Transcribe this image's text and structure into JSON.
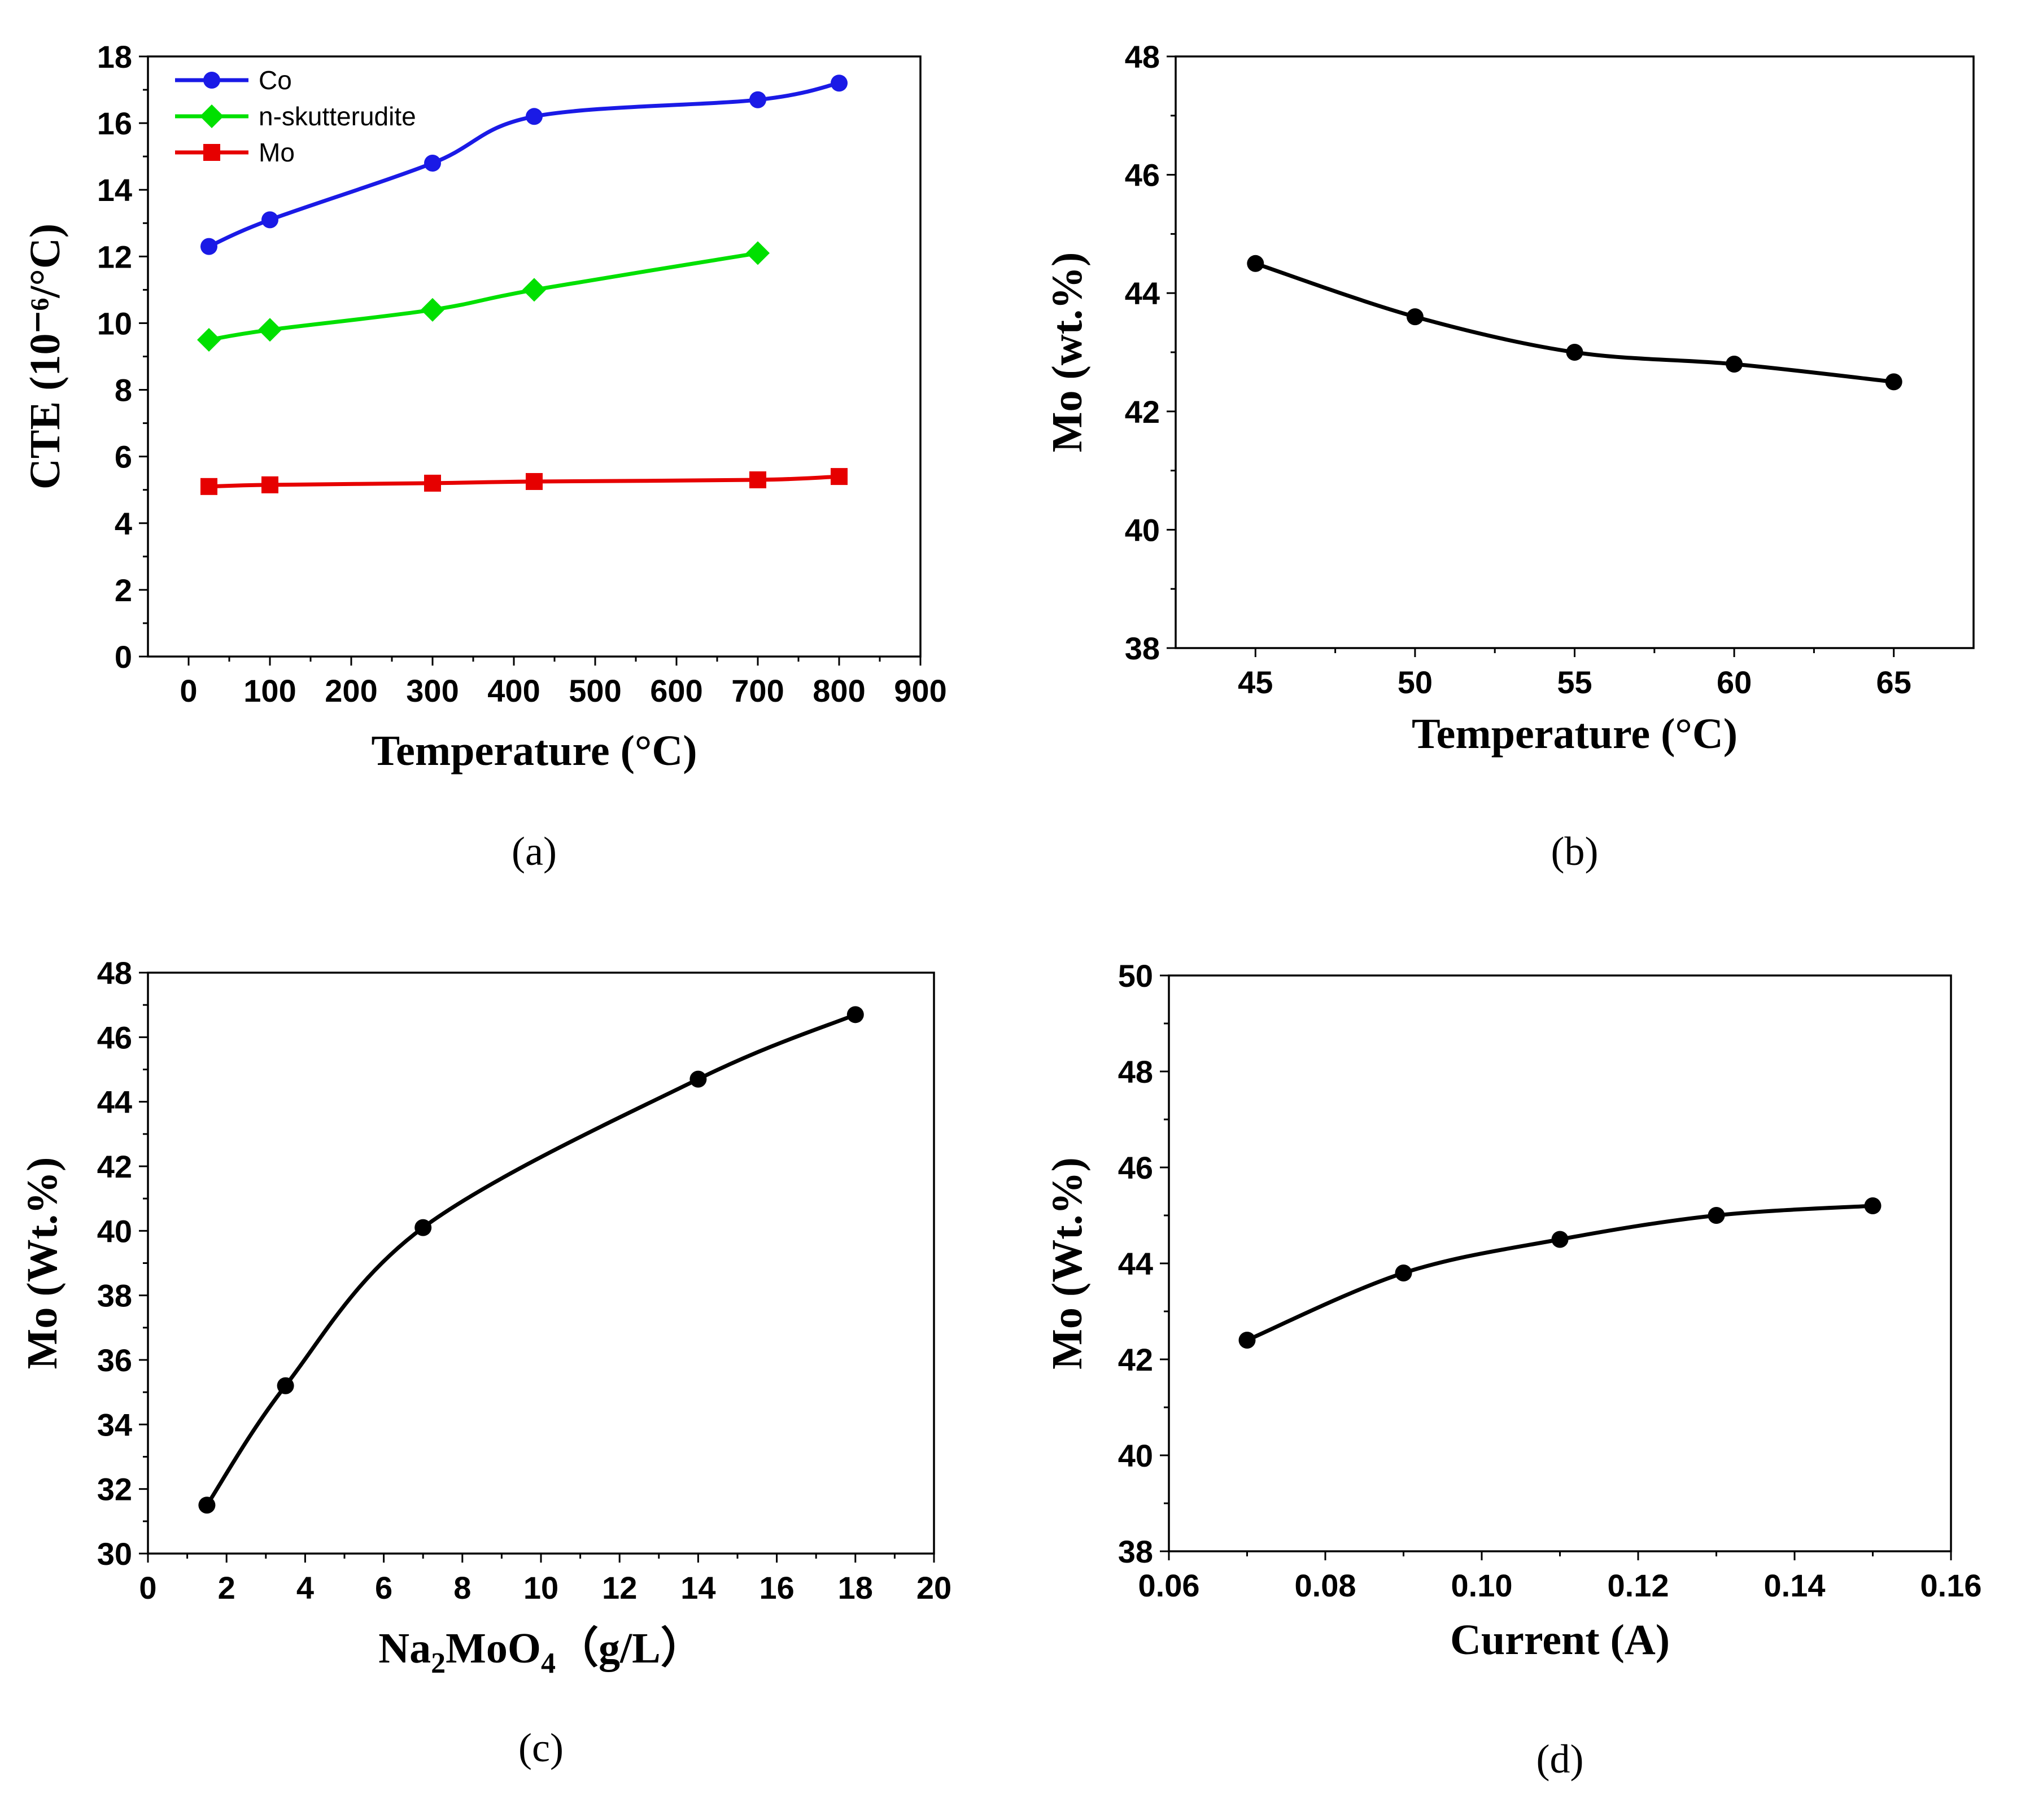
{
  "chart_data": [
    {
      "id": "a",
      "panel_label": "(a)",
      "type": "line",
      "xlabel": "Temperature (°C)",
      "ylabel": "CTE (10⁻⁶/°C)",
      "xlim": [
        -50,
        900
      ],
      "ylim": [
        0,
        18
      ],
      "xticks": [
        0,
        100,
        200,
        300,
        400,
        500,
        600,
        700,
        800,
        900
      ],
      "xtick_labels": [
        "0",
        "100",
        "200",
        "300",
        "400",
        "500",
        "600",
        "700",
        "800",
        "900"
      ],
      "yticks": [
        0,
        2,
        4,
        6,
        8,
        10,
        12,
        14,
        16,
        18
      ],
      "ytick_labels": [
        "0",
        "2",
        "4",
        "6",
        "8",
        "10",
        "12",
        "14",
        "16",
        "18"
      ],
      "legend_position": "top-left",
      "series": [
        {
          "name": "Co",
          "color": "#1a1ae6",
          "marker": "circle",
          "x": [
            25,
            100,
            300,
            425,
            700,
            800
          ],
          "y": [
            12.3,
            13.1,
            14.8,
            16.2,
            16.7,
            17.2
          ]
        },
        {
          "name": "n-skutterudite",
          "color": "#00e000",
          "marker": "diamond",
          "x": [
            25,
            100,
            300,
            425,
            700
          ],
          "y": [
            9.5,
            9.8,
            10.4,
            11.0,
            12.1
          ]
        },
        {
          "name": "Mo",
          "color": "#e60000",
          "marker": "square",
          "x": [
            25,
            100,
            300,
            425,
            700,
            800
          ],
          "y": [
            5.1,
            5.15,
            5.2,
            5.25,
            5.3,
            5.4
          ]
        }
      ]
    },
    {
      "id": "b",
      "panel_label": "(b)",
      "type": "line",
      "xlabel": "Temperature (°C)",
      "ylabel": "Mo (wt.%)",
      "xlim": [
        42.5,
        67.5
      ],
      "ylim": [
        38,
        48
      ],
      "xticks": [
        45,
        50,
        55,
        60,
        65
      ],
      "xtick_labels": [
        "45",
        "50",
        "55",
        "60",
        "65"
      ],
      "yticks": [
        38,
        40,
        42,
        44,
        46,
        48
      ],
      "ytick_labels": [
        "38",
        "40",
        "42",
        "44",
        "46",
        "48"
      ],
      "series": [
        {
          "name": "Mo",
          "color": "#000000",
          "marker": "circle",
          "x": [
            45,
            50,
            55,
            60,
            65
          ],
          "y": [
            44.5,
            43.6,
            43.0,
            42.8,
            42.5
          ]
        }
      ]
    },
    {
      "id": "c",
      "panel_label": "(c)",
      "type": "line",
      "xlabel_parts": [
        "Na",
        "2",
        "MoO",
        "4",
        "（g/L）"
      ],
      "ylabel": "Mo (Wt.%)",
      "xlim": [
        0,
        20
      ],
      "ylim": [
        30,
        48
      ],
      "xticks": [
        0,
        2,
        4,
        6,
        8,
        10,
        12,
        14,
        16,
        18,
        20
      ],
      "xtick_labels": [
        "0",
        "2",
        "4",
        "6",
        "8",
        "10",
        "12",
        "14",
        "16",
        "18",
        "20"
      ],
      "yticks": [
        30,
        32,
        34,
        36,
        38,
        40,
        42,
        44,
        46,
        48
      ],
      "ytick_labels": [
        "30",
        "32",
        "34",
        "36",
        "38",
        "40",
        "42",
        "44",
        "46",
        "48"
      ],
      "series": [
        {
          "name": "Mo",
          "color": "#000000",
          "marker": "circle",
          "x": [
            1.5,
            3.5,
            7,
            14,
            18
          ],
          "y": [
            31.5,
            35.2,
            40.1,
            44.7,
            46.7
          ]
        }
      ]
    },
    {
      "id": "d",
      "panel_label": "(d)",
      "type": "line",
      "xlabel": "Current (A)",
      "ylabel": "Mo (Wt.%)",
      "xlim": [
        0.06,
        0.16
      ],
      "ylim": [
        38,
        50
      ],
      "xticks": [
        0.06,
        0.08,
        0.1,
        0.12,
        0.14,
        0.16
      ],
      "xtick_labels": [
        "0.06",
        "0.08",
        "0.10",
        "0.12",
        "0.14",
        "0.16"
      ],
      "yticks": [
        38,
        40,
        42,
        44,
        46,
        48,
        50
      ],
      "ytick_labels": [
        "38",
        "40",
        "42",
        "44",
        "46",
        "48",
        "50"
      ],
      "series": [
        {
          "name": "Mo",
          "color": "#000000",
          "marker": "circle",
          "x": [
            0.07,
            0.09,
            0.11,
            0.13,
            0.15
          ],
          "y": [
            42.4,
            43.8,
            44.5,
            45.0,
            45.2
          ]
        }
      ]
    }
  ]
}
